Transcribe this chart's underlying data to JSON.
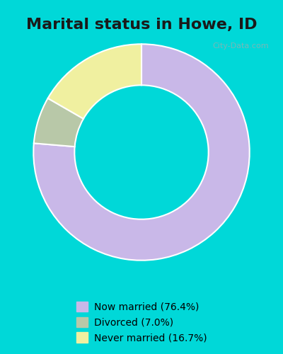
{
  "title": "Marital status in Howe, ID",
  "title_fontsize": 16,
  "background_outer": "#00d8d8",
  "background_inner": "#e8f5e8",
  "watermark": "City-Data.com",
  "slices": [
    76.4,
    7.0,
    16.7
  ],
  "labels": [
    "Now married (76.4%)",
    "Divorced (7.0%)",
    "Never married (16.7%)"
  ],
  "colors": [
    "#c9b8e8",
    "#b8c8a8",
    "#f0f0a0"
  ],
  "legend_marker_colors": [
    "#c9b8e8",
    "#b8c8a8",
    "#f0f0a0"
  ],
  "donut_width": 0.38,
  "start_angle": 90,
  "figsize": [
    4.0,
    5.0
  ],
  "dpi": 100
}
